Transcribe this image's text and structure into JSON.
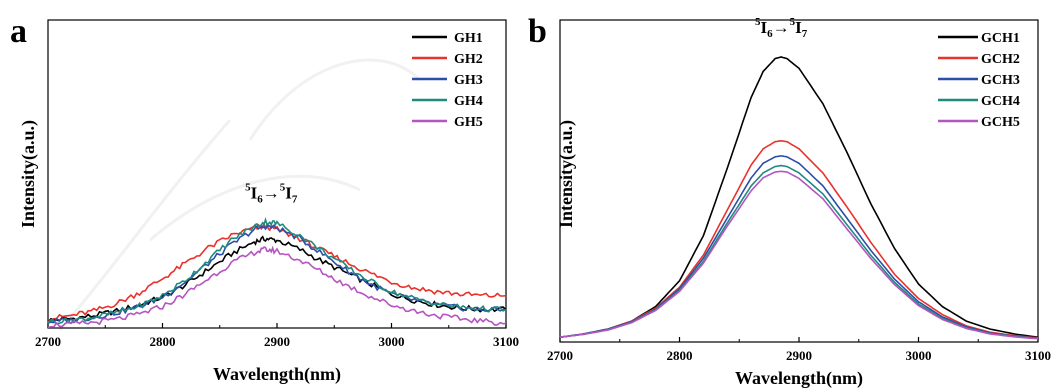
{
  "chart_data": [
    {
      "panel": "a",
      "type": "line",
      "xlabel": "Wavelength(nm)",
      "ylabel": "Intensity(a.u.)",
      "xlim": [
        2700,
        3100
      ],
      "ylim": [
        0,
        1
      ],
      "xticks": [
        2700,
        2800,
        2900,
        3000,
        3100
      ],
      "annotation": {
        "base": "I",
        "pre1": "5",
        "sub1": "6",
        "arrow": "→",
        "pre2": "5",
        "sub2": "7",
        "x": 2895,
        "y": 0.42
      },
      "legend_position": "top-right",
      "x": [
        2700,
        2720,
        2740,
        2760,
        2780,
        2800,
        2820,
        2840,
        2860,
        2880,
        2890,
        2900,
        2920,
        2940,
        2960,
        2980,
        3000,
        3020,
        3040,
        3060,
        3080,
        3100
      ],
      "series": [
        {
          "name": "GH1",
          "color": "#000000",
          "values": [
            0.025,
            0.03,
            0.04,
            0.055,
            0.075,
            0.1,
            0.14,
            0.19,
            0.24,
            0.28,
            0.29,
            0.285,
            0.255,
            0.215,
            0.18,
            0.145,
            0.11,
            0.09,
            0.075,
            0.065,
            0.06,
            0.06
          ]
        },
        {
          "name": "GH2",
          "color": "#e8322b",
          "values": [
            0.03,
            0.04,
            0.055,
            0.08,
            0.115,
            0.16,
            0.21,
            0.26,
            0.3,
            0.325,
            0.33,
            0.32,
            0.29,
            0.25,
            0.215,
            0.18,
            0.15,
            0.13,
            0.118,
            0.11,
            0.105,
            0.105
          ]
        },
        {
          "name": "GH3",
          "color": "#2b4ea8",
          "values": [
            0.02,
            0.025,
            0.035,
            0.05,
            0.07,
            0.1,
            0.15,
            0.21,
            0.27,
            0.32,
            0.33,
            0.325,
            0.29,
            0.24,
            0.19,
            0.145,
            0.11,
            0.09,
            0.075,
            0.065,
            0.06,
            0.058
          ]
        },
        {
          "name": "GH4",
          "color": "#1f8a7e",
          "values": [
            0.02,
            0.025,
            0.035,
            0.05,
            0.072,
            0.105,
            0.155,
            0.22,
            0.285,
            0.33,
            0.345,
            0.34,
            0.3,
            0.25,
            0.2,
            0.155,
            0.118,
            0.095,
            0.078,
            0.068,
            0.062,
            0.06
          ]
        },
        {
          "name": "GH5",
          "color": "#b455c0",
          "values": [
            0.01,
            0.012,
            0.018,
            0.028,
            0.045,
            0.07,
            0.11,
            0.16,
            0.21,
            0.245,
            0.255,
            0.25,
            0.22,
            0.18,
            0.14,
            0.105,
            0.075,
            0.055,
            0.04,
            0.03,
            0.022,
            0.015
          ]
        }
      ]
    },
    {
      "panel": "b",
      "type": "line",
      "xlabel": "Wavelength(nm)",
      "ylabel": "Intensity(a.u.)",
      "xlim": [
        2700,
        3100
      ],
      "ylim": [
        0,
        1
      ],
      "xticks": [
        2700,
        2800,
        2900,
        3000,
        3100
      ],
      "annotation": {
        "base": "I",
        "pre1": "5",
        "sub1": "6",
        "arrow": "→",
        "pre2": "5",
        "sub2": "7",
        "x": 2885,
        "y": 0.96
      },
      "legend_position": "top-right",
      "x": [
        2700,
        2720,
        2740,
        2760,
        2780,
        2800,
        2820,
        2840,
        2860,
        2870,
        2880,
        2885,
        2890,
        2900,
        2920,
        2940,
        2960,
        2980,
        3000,
        3020,
        3040,
        3060,
        3080,
        3100
      ],
      "series": [
        {
          "name": "GCH1",
          "color": "#000000",
          "values": [
            0.015,
            0.025,
            0.04,
            0.065,
            0.11,
            0.19,
            0.33,
            0.54,
            0.76,
            0.84,
            0.88,
            0.885,
            0.88,
            0.85,
            0.74,
            0.59,
            0.43,
            0.29,
            0.18,
            0.11,
            0.065,
            0.04,
            0.025,
            0.015
          ]
        },
        {
          "name": "GCH2",
          "color": "#e8322b",
          "values": [
            0.015,
            0.025,
            0.04,
            0.065,
            0.105,
            0.17,
            0.27,
            0.41,
            0.55,
            0.6,
            0.622,
            0.625,
            0.622,
            0.6,
            0.525,
            0.42,
            0.31,
            0.21,
            0.135,
            0.085,
            0.05,
            0.03,
            0.02,
            0.013
          ]
        },
        {
          "name": "GCH3",
          "color": "#2b4ea8",
          "values": [
            0.015,
            0.025,
            0.04,
            0.063,
            0.102,
            0.165,
            0.26,
            0.385,
            0.51,
            0.555,
            0.575,
            0.578,
            0.575,
            0.555,
            0.485,
            0.385,
            0.285,
            0.195,
            0.125,
            0.078,
            0.047,
            0.028,
            0.018,
            0.012
          ]
        },
        {
          "name": "GCH4",
          "color": "#1f8a7e",
          "values": [
            0.015,
            0.024,
            0.038,
            0.061,
            0.1,
            0.16,
            0.25,
            0.37,
            0.485,
            0.525,
            0.545,
            0.548,
            0.545,
            0.525,
            0.46,
            0.365,
            0.27,
            0.185,
            0.118,
            0.073,
            0.044,
            0.026,
            0.017,
            0.011
          ]
        },
        {
          "name": "GCH5",
          "color": "#b455c0",
          "values": [
            0.015,
            0.024,
            0.037,
            0.06,
            0.098,
            0.157,
            0.245,
            0.36,
            0.47,
            0.51,
            0.528,
            0.53,
            0.528,
            0.508,
            0.445,
            0.352,
            0.26,
            0.178,
            0.113,
            0.07,
            0.042,
            0.025,
            0.016,
            0.01
          ]
        }
      ]
    }
  ]
}
